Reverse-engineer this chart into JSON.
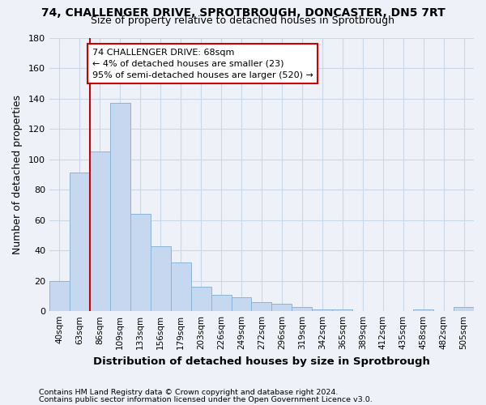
{
  "title1": "74, CHALLENGER DRIVE, SPROTBROUGH, DONCASTER, DN5 7RT",
  "title2": "Size of property relative to detached houses in Sprotbrough",
  "xlabel": "Distribution of detached houses by size in Sprotbrough",
  "ylabel": "Number of detached properties",
  "bins": [
    "40sqm",
    "63sqm",
    "86sqm",
    "109sqm",
    "133sqm",
    "156sqm",
    "179sqm",
    "203sqm",
    "226sqm",
    "249sqm",
    "272sqm",
    "296sqm",
    "319sqm",
    "342sqm",
    "365sqm",
    "389sqm",
    "412sqm",
    "435sqm",
    "458sqm",
    "482sqm",
    "505sqm"
  ],
  "values": [
    20,
    91,
    105,
    137,
    64,
    43,
    32,
    16,
    11,
    9,
    6,
    5,
    3,
    1,
    1,
    0,
    0,
    0,
    1,
    0,
    3
  ],
  "bar_color": "#c5d8ef",
  "bar_edge_color": "#8ab4d8",
  "vline_x": 1.5,
  "vline_color": "#cc0000",
  "annotation_text": "74 CHALLENGER DRIVE: 68sqm\n← 4% of detached houses are smaller (23)\n95% of semi-detached houses are larger (520) →",
  "annotation_box_color": "#ffffff",
  "annotation_box_edge": "#cc0000",
  "ylim": [
    0,
    180
  ],
  "yticks": [
    0,
    20,
    40,
    60,
    80,
    100,
    120,
    140,
    160,
    180
  ],
  "grid_color": "#c8d8e8",
  "footer1": "Contains HM Land Registry data © Crown copyright and database right 2024.",
  "footer2": "Contains public sector information licensed under the Open Government Licence v3.0.",
  "bg_color": "#eef2f8"
}
